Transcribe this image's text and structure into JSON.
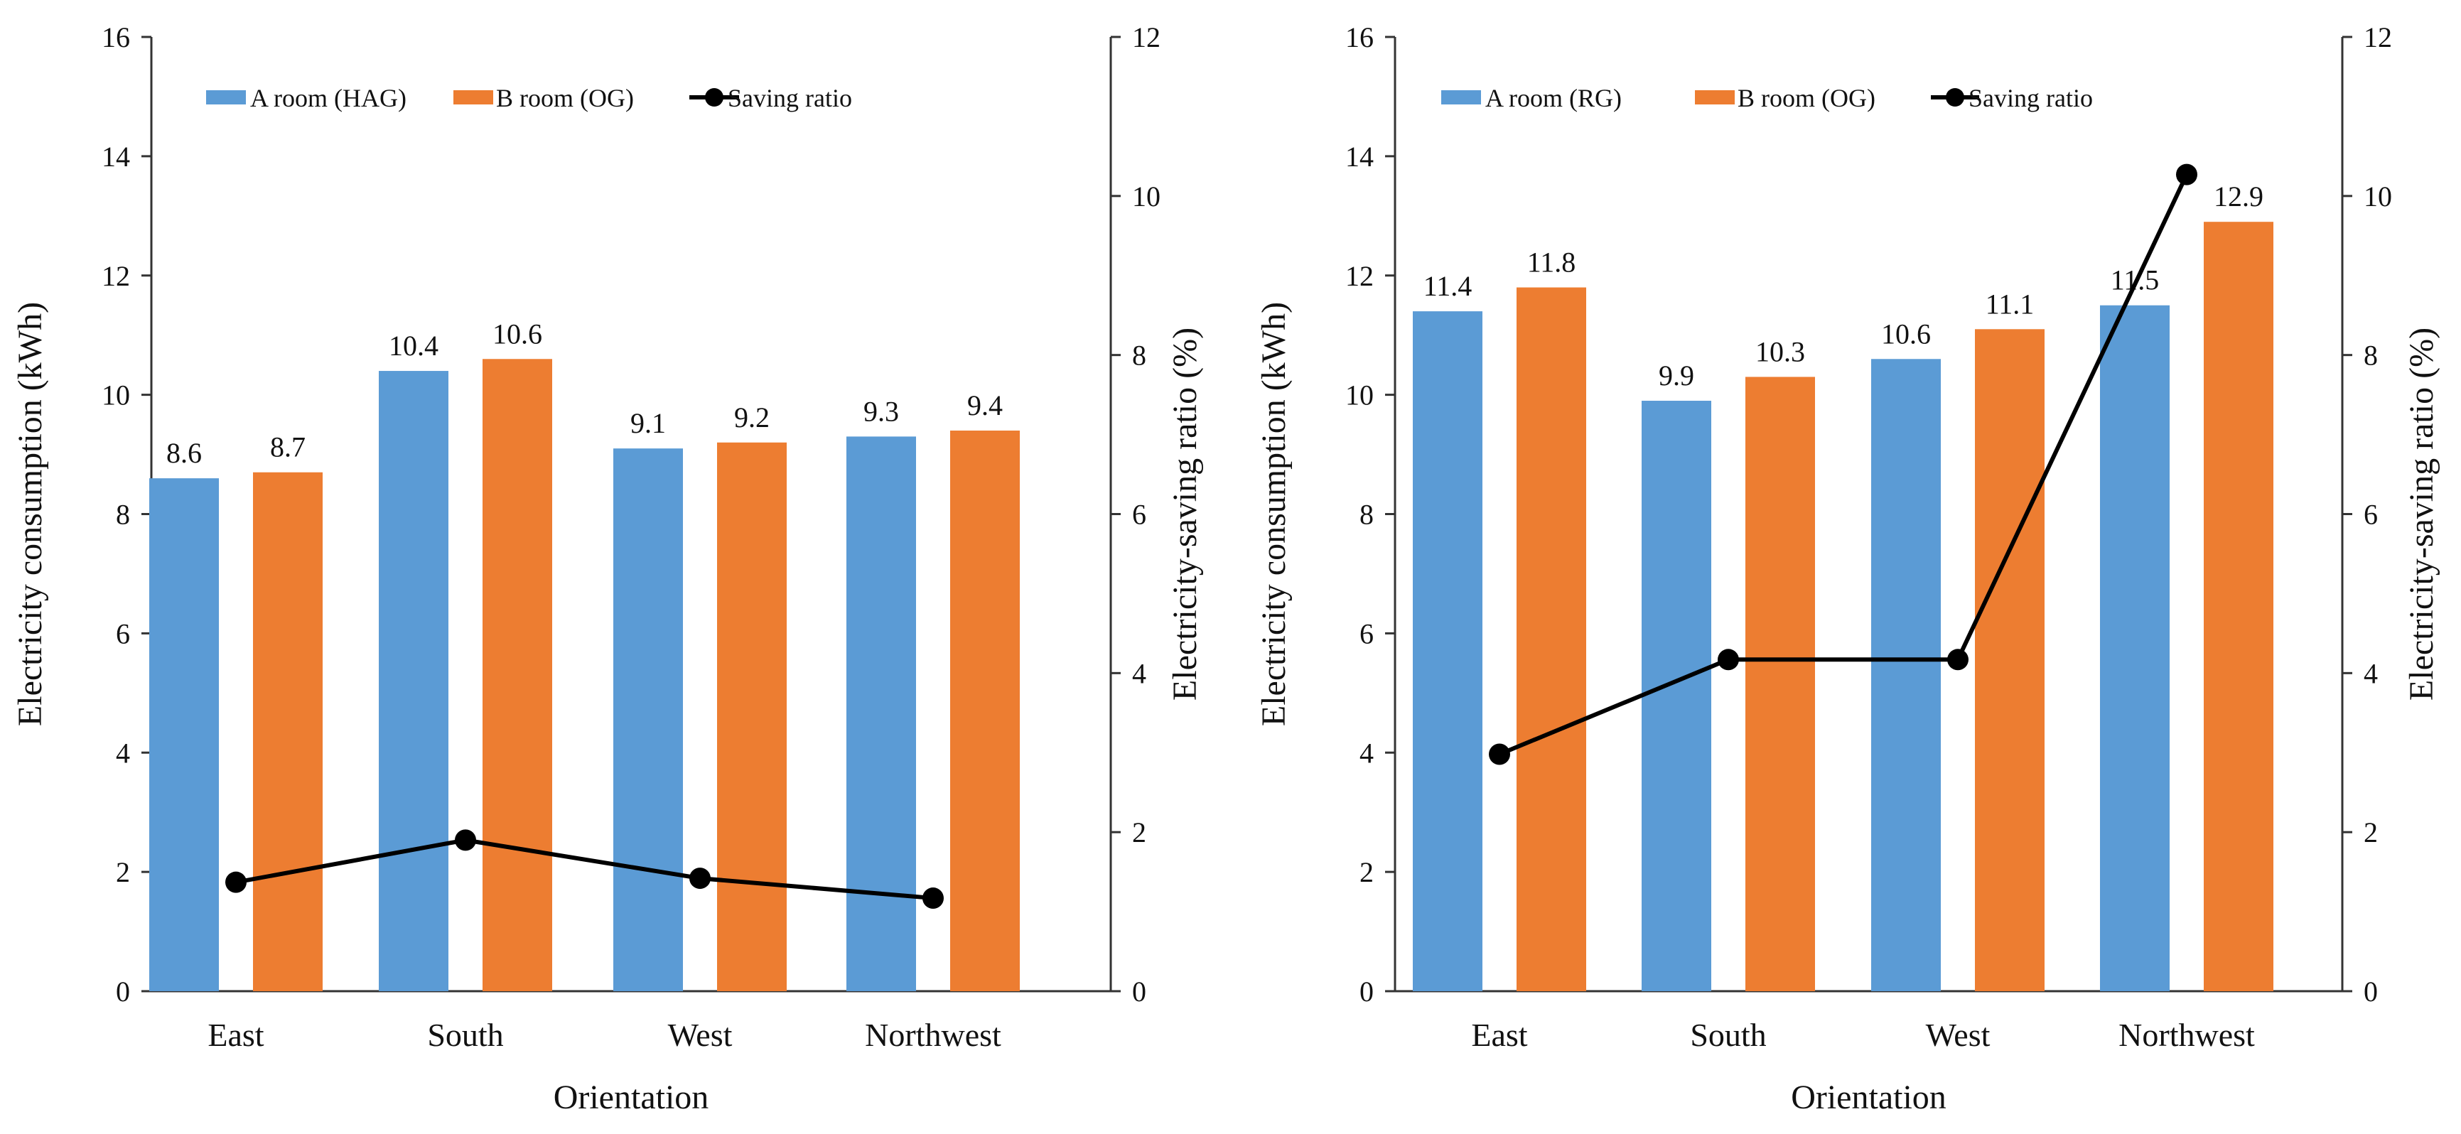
{
  "chart_data": [
    {
      "type": "bar",
      "categories": [
        "East",
        "South",
        "West",
        "Northwest"
      ],
      "series": [
        {
          "name": "A room (HAG)",
          "axis": "left",
          "color": "#5B9BD5",
          "values": [
            8.6,
            10.4,
            9.1,
            9.3
          ],
          "labels": [
            "8.6",
            "10.4",
            "9.1",
            "9.3"
          ]
        },
        {
          "name": "B room (OG)",
          "axis": "left",
          "color": "#ED7D31",
          "values": [
            8.7,
            10.6,
            9.2,
            9.4
          ],
          "labels": [
            "8.7",
            "10.6",
            "9.2",
            "9.4"
          ]
        },
        {
          "name": "Saving ratio",
          "axis": "right",
          "type": "line",
          "color": "#000000",
          "values": [
            1.37,
            1.9,
            1.42,
            1.17
          ]
        }
      ],
      "xlabel": "Orientation",
      "ylabel": "Electricity consumption (kWh)",
      "y2label": "Electricity-saving ratio (%)",
      "ylim": [
        0,
        16
      ],
      "y2lim": [
        0,
        12
      ],
      "yticks": [
        "0",
        "2",
        "4",
        "6",
        "8",
        "10",
        "12",
        "14",
        "16"
      ],
      "y2ticks": [
        "0",
        "2",
        "4",
        "6",
        "8",
        "10",
        "12"
      ],
      "legend_position": "top"
    },
    {
      "type": "bar",
      "categories": [
        "East",
        "South",
        "West",
        "Northwest"
      ],
      "series": [
        {
          "name": "A room (RG)",
          "axis": "left",
          "color": "#5B9BD5",
          "values": [
            11.4,
            9.9,
            10.6,
            11.5
          ],
          "labels": [
            "11.4",
            "9.9",
            "10.6",
            "11.5"
          ]
        },
        {
          "name": "B room (OG)",
          "axis": "left",
          "color": "#ED7D31",
          "values": [
            11.8,
            10.3,
            11.1,
            12.9
          ],
          "labels": [
            "11.8",
            "10.3",
            "11.1",
            "12.9"
          ]
        },
        {
          "name": "Saving ratio",
          "axis": "right",
          "type": "line",
          "color": "#000000",
          "values": [
            2.98,
            4.17,
            4.17,
            10.27
          ]
        }
      ],
      "xlabel": "Orientation",
      "ylabel": "Electricity consumption (kWh)",
      "y2label": "Electricity-saving ratio (%)",
      "ylim": [
        0,
        16
      ],
      "y2lim": [
        0,
        12
      ],
      "yticks": [
        "0",
        "2",
        "4",
        "6",
        "8",
        "10",
        "12",
        "14",
        "16"
      ],
      "y2ticks": [
        "0",
        "2",
        "4",
        "6",
        "8",
        "10",
        "12"
      ],
      "legend_position": "top"
    }
  ]
}
